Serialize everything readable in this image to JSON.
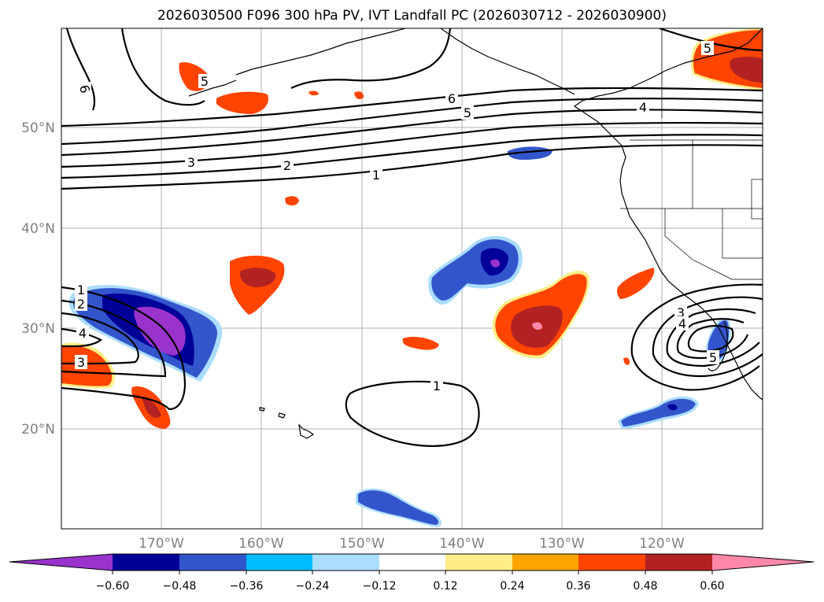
{
  "title": "2026030500 F096 300 hPa PV, IVT Landfall PC (2026030712 - 2026030900)",
  "map": {
    "lat_labels": [
      "50°N",
      "40°N",
      "30°N",
      "20°N"
    ],
    "lon_labels": [
      "170°W",
      "160°W",
      "150°W",
      "140°W",
      "130°W",
      "120°W"
    ],
    "gridlines": true,
    "contour_labels": [
      {
        "text": "6",
        "name": "contour-label-6-north"
      },
      {
        "text": "6",
        "name": "contour-label-6-mid"
      },
      {
        "text": "5",
        "name": "contour-label-5-mid"
      },
      {
        "text": "5",
        "name": "contour-label-5-ne"
      },
      {
        "text": "4",
        "name": "contour-label-4-ne"
      },
      {
        "text": "5",
        "name": "contour-label-5-nw"
      },
      {
        "text": "3",
        "name": "contour-label-3-west"
      },
      {
        "text": "2",
        "name": "contour-label-2-west"
      },
      {
        "text": "1",
        "name": "contour-label-1-west"
      },
      {
        "text": "1",
        "name": "contour-label-1-sw"
      },
      {
        "text": "2",
        "name": "contour-label-2-sw"
      },
      {
        "text": "4",
        "name": "contour-label-4-sw"
      },
      {
        "text": "3",
        "name": "contour-label-3-sw"
      },
      {
        "text": "1",
        "name": "contour-label-1-hawaii"
      },
      {
        "text": "3",
        "name": "contour-label-3-se"
      },
      {
        "text": "4",
        "name": "contour-label-4-se"
      },
      {
        "text": "5",
        "name": "contour-label-5-se"
      }
    ]
  },
  "colorbar": {
    "ticks": [
      "−0.60",
      "−0.48",
      "−0.36",
      "−0.24",
      "−0.12",
      "0.12",
      "0.24",
      "0.36",
      "0.48",
      "0.60"
    ],
    "colors": {
      "neg_ext": "#9933cc",
      "neg_060": "#000099",
      "neg_048": "#3355cc",
      "neg_036": "#00bbff",
      "neg_024": "#aaddff",
      "neutral": "#ffffff",
      "pos_012": "#ffee88",
      "pos_024": "#ffa500",
      "pos_036": "#ff4400",
      "pos_048": "#b22222",
      "pos_ext": "#ff88aa"
    }
  }
}
